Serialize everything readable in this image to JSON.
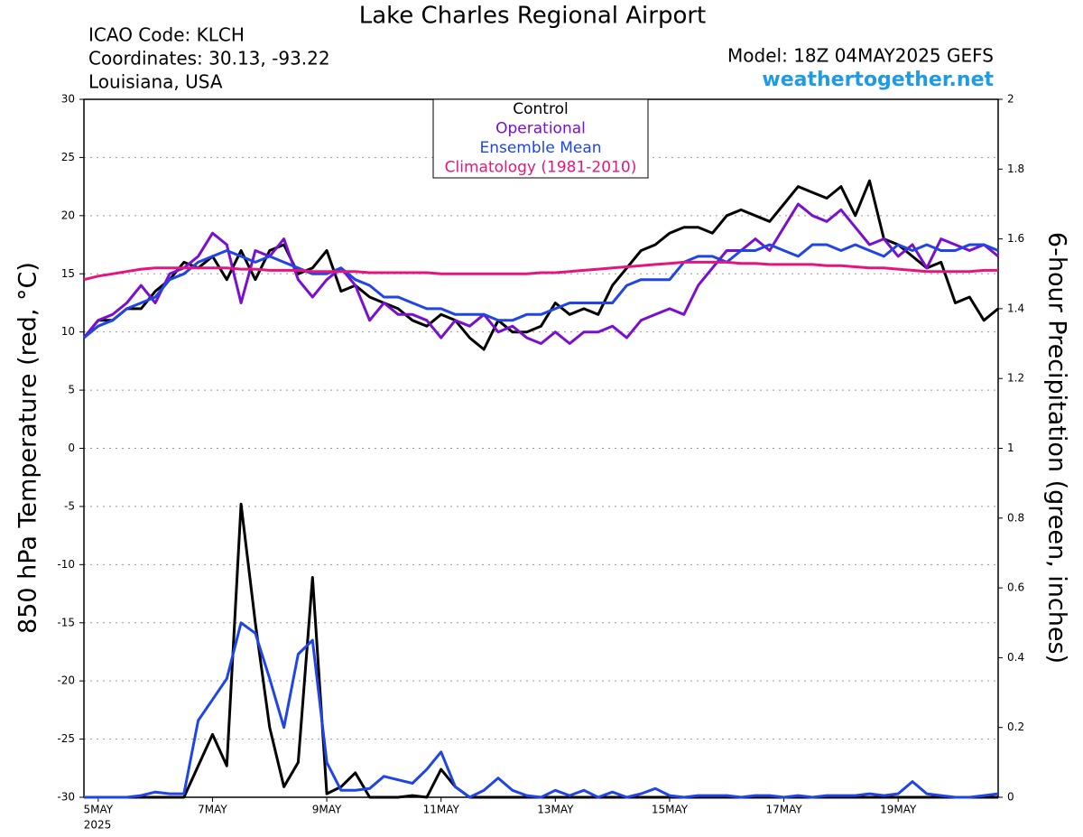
{
  "chart_data": {
    "type": "line",
    "title": "Lake Charles Regional Airport",
    "info_left": [
      "ICAO Code: KLCH",
      "Coordinates: 30.13, -93.22",
      "Louisiana, USA"
    ],
    "model": "Model: 18Z 04MAY2025 GEFS",
    "source": "weathertogether.net",
    "ylabel": "850 hPa Temperature (red, °C)",
    "y2label": "6-hour Precipitation (green, inches)",
    "year_label": "2025",
    "x": [
      0,
      6,
      12,
      18,
      24,
      30,
      36,
      42,
      48,
      54,
      60,
      66,
      72,
      78,
      84,
      90,
      96,
      102,
      108,
      114,
      120,
      126,
      132,
      138,
      144,
      150,
      156,
      162,
      168,
      174,
      180,
      186,
      192,
      198,
      204,
      210,
      216,
      222,
      228,
      234,
      240,
      246,
      252,
      258,
      264,
      270,
      276,
      282,
      288,
      294,
      300,
      306,
      312,
      318,
      324,
      330,
      336,
      342,
      348,
      354,
      360,
      366,
      372,
      378,
      384
    ],
    "xlim": [
      0,
      384
    ],
    "xticks": [
      {
        "value": 6,
        "label": "5MAY"
      },
      {
        "value": 54,
        "label": "7MAY"
      },
      {
        "value": 102,
        "label": "9MAY"
      },
      {
        "value": 150,
        "label": "11MAY"
      },
      {
        "value": 198,
        "label": "13MAY"
      },
      {
        "value": 246,
        "label": "15MAY"
      },
      {
        "value": 294,
        "label": "17MAY"
      },
      {
        "value": 342,
        "label": "19MAY"
      }
    ],
    "ylim": [
      -30,
      30
    ],
    "yticks": [
      -30,
      -25,
      -20,
      -15,
      -10,
      -5,
      0,
      5,
      10,
      15,
      20,
      25,
      30
    ],
    "y2lim": [
      0,
      2
    ],
    "y2ticks": [
      0,
      0.2,
      0.4,
      0.6,
      0.8,
      1,
      1.2,
      1.4,
      1.6,
      1.8,
      2
    ],
    "grid": true,
    "legend": "top",
    "series": [
      {
        "name": "Control",
        "color": "#000000",
        "values": [
          9.5,
          11,
          11,
          12,
          12,
          13.5,
          14.5,
          16,
          15.5,
          16.5,
          14.5,
          17,
          14.5,
          17,
          17.5,
          15,
          15.5,
          17,
          13.5,
          14,
          13,
          12.5,
          12,
          11,
          10.5,
          11.5,
          11,
          9.5,
          8.5,
          11,
          10,
          10,
          10.5,
          12.5,
          11.5,
          12,
          11.5,
          14,
          15.5,
          17,
          17.5,
          18.5,
          19,
          19,
          18.5,
          20,
          20.5,
          20,
          19.5,
          21,
          22.5,
          22,
          21.5,
          22.5,
          20,
          23,
          18,
          17.5,
          16.5,
          15.5,
          16,
          12.5,
          13,
          11,
          12
        ]
      },
      {
        "name": "Operational",
        "color": "#7a0fd0",
        "values": [
          9.5,
          11,
          11.5,
          12.5,
          14,
          12.5,
          15,
          15.5,
          16.5,
          18.5,
          17.5,
          12.5,
          17,
          16.5,
          18,
          14.5,
          13,
          14.5,
          15.5,
          14,
          11,
          12.5,
          11.5,
          11.5,
          11,
          9.5,
          11,
          10.5,
          11.5,
          10,
          10.5,
          9.5,
          9,
          10,
          9,
          10,
          10,
          10.5,
          9.5,
          11,
          11.5,
          12,
          11.5,
          14,
          15.5,
          17,
          17,
          18,
          17,
          19,
          21,
          20,
          19.5,
          20.5,
          19,
          17.5,
          18,
          16.5,
          17.5,
          15.5,
          18,
          17.5,
          17,
          17.5,
          16.5
        ]
      },
      {
        "name": "Ensemble Mean",
        "color": "#1f45e6",
        "values": [
          9.5,
          10.5,
          11,
          12,
          12.5,
          13,
          14.5,
          15,
          16,
          16.5,
          17,
          16.5,
          16,
          16.5,
          16,
          15.5,
          15,
          15,
          15.5,
          14.5,
          14,
          13,
          13,
          12.5,
          12,
          12,
          11.5,
          11.5,
          11.5,
          11,
          11,
          11.5,
          11.5,
          12,
          12.5,
          12.5,
          12.5,
          12.5,
          14,
          14.5,
          14.5,
          14.5,
          16,
          16.5,
          16.5,
          16,
          17,
          17,
          17.5,
          17,
          16.5,
          17.5,
          17.5,
          17,
          17.5,
          17,
          16.5,
          17.5,
          17,
          17.5,
          17,
          17,
          17.5,
          17.5,
          17
        ]
      },
      {
        "name": "Climatology (1981-2010)",
        "color": "#e5157f",
        "values": [
          14.5,
          14.8,
          15,
          15.2,
          15.4,
          15.5,
          15.5,
          15.5,
          15.5,
          15.5,
          15.5,
          15.4,
          15.4,
          15.3,
          15.3,
          15.3,
          15.2,
          15.2,
          15.2,
          15.2,
          15.1,
          15.1,
          15.1,
          15.1,
          15.1,
          15,
          15,
          15,
          15,
          15,
          15,
          15,
          15.1,
          15.1,
          15.2,
          15.3,
          15.4,
          15.5,
          15.6,
          15.7,
          15.8,
          15.9,
          16,
          16,
          16,
          16,
          15.9,
          15.9,
          15.8,
          15.8,
          15.8,
          15.8,
          15.7,
          15.7,
          15.6,
          15.5,
          15.5,
          15.4,
          15.3,
          15.2,
          15.2,
          15.2,
          15.2,
          15.3,
          15.3
        ]
      },
      {
        "name": "Control",
        "color": "#000000",
        "axis": "y2",
        "values": [
          0,
          0,
          0,
          0,
          0,
          0,
          0,
          0,
          0.09,
          0.18,
          0.09,
          0.84,
          0.5,
          0.2,
          0.03,
          0.1,
          0.63,
          0.01,
          0.03,
          0.07,
          0,
          0,
          0,
          0.005,
          0,
          0.08,
          0.03,
          0,
          0,
          0,
          0,
          0,
          0,
          0,
          0,
          0,
          0,
          0,
          0,
          0,
          0,
          0,
          0,
          0,
          0,
          0,
          0,
          0,
          0,
          0,
          0,
          0,
          0,
          0,
          0,
          0,
          0,
          0,
          0,
          0,
          0,
          0,
          0,
          0,
          0
        ]
      },
      {
        "name": "Ensemble Mean",
        "color": "#1f45e6",
        "axis": "y2",
        "values": [
          0,
          0,
          0,
          0,
          0.005,
          0.015,
          0.01,
          0.01,
          0.22,
          0.28,
          0.34,
          0.5,
          0.47,
          0.34,
          0.2,
          0.41,
          0.45,
          0.1,
          0.02,
          0.02,
          0.025,
          0.06,
          0.05,
          0.04,
          0.08,
          0.13,
          0.03,
          0,
          0.02,
          0.055,
          0.02,
          0.005,
          0,
          0.02,
          0.005,
          0.02,
          0,
          0.015,
          0,
          0.01,
          0.025,
          0.005,
          0,
          0.005,
          0.005,
          0.005,
          0,
          0.005,
          0.005,
          0,
          0.005,
          0,
          0.005,
          0.005,
          0.005,
          0.01,
          0.005,
          0.01,
          0.045,
          0.01,
          0.005,
          0,
          0,
          0.005,
          0.01
        ]
      }
    ]
  }
}
